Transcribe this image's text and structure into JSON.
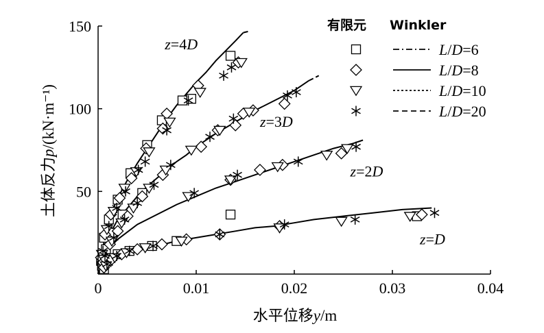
{
  "chart_data": {
    "type": "scatter",
    "xlabel": "水平位移y/m",
    "ylabel": "土体反力p/(kN·m⁻¹)",
    "xlim": [
      0,
      0.04
    ],
    "ylim": [
      0,
      150
    ],
    "x_ticks": [
      "0",
      "0.01",
      "0.02",
      "0.03",
      "0.04"
    ],
    "y_ticks": [
      "50",
      "100",
      "150"
    ],
    "legend": {
      "placement": "top-right",
      "header_fem": "有限元",
      "header_winkler": "Winkler",
      "entries": [
        {
          "label": "L/D=6",
          "marker": "square",
          "line": "dashdot"
        },
        {
          "label": "L/D=8",
          "marker": "diamond",
          "line": "solid"
        },
        {
          "label": "L/D=10",
          "marker": "triangle-down",
          "line": "dotted"
        },
        {
          "label": "L/D=20",
          "marker": "asterisk",
          "line": "dashed"
        }
      ]
    },
    "curves": [
      {
        "depth_label": "z=4D",
        "points": [
          [
            0,
            0
          ],
          [
            0.001,
            32
          ],
          [
            0.002,
            46
          ],
          [
            0.003,
            57
          ],
          [
            0.004,
            67
          ],
          [
            0.005,
            76
          ],
          [
            0.006,
            85
          ],
          [
            0.007,
            94
          ],
          [
            0.008,
            102
          ],
          [
            0.009,
            109
          ],
          [
            0.01,
            116
          ],
          [
            0.011,
            122
          ],
          [
            0.012,
            129
          ],
          [
            0.013,
            135
          ],
          [
            0.014,
            141
          ],
          [
            0.0148,
            146
          ]
        ]
      },
      {
        "depth_label": "z=3D",
        "points": [
          [
            0,
            0
          ],
          [
            0.001,
            22
          ],
          [
            0.002,
            33
          ],
          [
            0.003,
            40
          ],
          [
            0.004,
            47
          ],
          [
            0.005,
            53
          ],
          [
            0.006,
            58
          ],
          [
            0.007,
            63
          ],
          [
            0.008,
            68
          ],
          [
            0.009,
            72
          ],
          [
            0.01,
            77
          ],
          [
            0.012,
            85
          ],
          [
            0.014,
            92
          ],
          [
            0.016,
            99
          ],
          [
            0.018,
            105
          ],
          [
            0.02,
            111
          ],
          [
            0.0215,
            117
          ]
        ]
      },
      {
        "depth_label": "z=2D",
        "points": [
          [
            0,
            0
          ],
          [
            0.001,
            15
          ],
          [
            0.002,
            21
          ],
          [
            0.004,
            30
          ],
          [
            0.006,
            36
          ],
          [
            0.008,
            42
          ],
          [
            0.01,
            47
          ],
          [
            0.012,
            52
          ],
          [
            0.014,
            56
          ],
          [
            0.016,
            60
          ],
          [
            0.018,
            64
          ],
          [
            0.02,
            68
          ],
          [
            0.022,
            72
          ],
          [
            0.024,
            76
          ],
          [
            0.026,
            79
          ],
          [
            0.027,
            81
          ]
        ]
      },
      {
        "depth_label": "z=D",
        "points": [
          [
            0,
            0
          ],
          [
            0.001,
            7
          ],
          [
            0.002,
            10
          ],
          [
            0.004,
            14
          ],
          [
            0.006,
            17
          ],
          [
            0.008,
            20
          ],
          [
            0.01,
            22
          ],
          [
            0.012,
            24
          ],
          [
            0.014,
            26
          ],
          [
            0.016,
            28
          ],
          [
            0.018,
            29
          ],
          [
            0.02,
            31
          ],
          [
            0.022,
            33
          ],
          [
            0.025,
            35
          ],
          [
            0.028,
            37
          ],
          [
            0.031,
            39
          ],
          [
            0.034,
            40
          ]
        ]
      }
    ],
    "fem_points": {
      "square": [
        [
          0.0003,
          8
        ],
        [
          0.0006,
          22
        ],
        [
          0.0011,
          33
        ],
        [
          0.002,
          45
        ],
        [
          0.0033,
          61
        ],
        [
          0.005,
          78
        ],
        [
          0.0065,
          93
        ],
        [
          0.0086,
          105
        ],
        [
          0.0095,
          106
        ],
        [
          0.0135,
          132
        ],
        [
          0.0004,
          5
        ],
        [
          0.0008,
          15
        ],
        [
          0.0015,
          25
        ],
        [
          0.0025,
          36
        ],
        [
          0.0045,
          49
        ],
        [
          0.0006,
          3
        ],
        [
          0.001,
          8
        ],
        [
          0.002,
          12
        ],
        [
          0.0032,
          14
        ],
        [
          0.0055,
          17
        ],
        [
          0.008,
          20
        ],
        [
          0.0135,
          36
        ],
        [
          0.0325,
          35
        ]
      ],
      "diamond": [
        [
          0.0003,
          10
        ],
        [
          0.0007,
          24
        ],
        [
          0.0013,
          36
        ],
        [
          0.0022,
          46
        ],
        [
          0.0034,
          58
        ],
        [
          0.0049,
          76
        ],
        [
          0.0066,
          88
        ],
        [
          0.007,
          97
        ],
        [
          0.0102,
          114
        ],
        [
          0.0143,
          128
        ],
        [
          0.0005,
          7
        ],
        [
          0.0012,
          18
        ],
        [
          0.002,
          26
        ],
        [
          0.003,
          35
        ],
        [
          0.0045,
          47
        ],
        [
          0.0066,
          60
        ],
        [
          0.0105,
          77
        ],
        [
          0.0122,
          87
        ],
        [
          0.014,
          90
        ],
        [
          0.0148,
          97
        ],
        [
          0.0158,
          99
        ],
        [
          0.019,
          103
        ],
        [
          0.0135,
          57
        ],
        [
          0.0165,
          63
        ],
        [
          0.0188,
          66
        ],
        [
          0.0248,
          73
        ],
        [
          0.0006,
          4
        ],
        [
          0.0014,
          9
        ],
        [
          0.0024,
          12
        ],
        [
          0.004,
          15
        ],
        [
          0.0065,
          18
        ],
        [
          0.009,
          21
        ],
        [
          0.0124,
          24
        ],
        [
          0.0185,
          29
        ],
        [
          0.033,
          36
        ]
      ],
      "triangle-down": [
        [
          0.0004,
          12
        ],
        [
          0.0009,
          27
        ],
        [
          0.0016,
          38
        ],
        [
          0.0027,
          52
        ],
        [
          0.0039,
          62
        ],
        [
          0.0052,
          74
        ],
        [
          0.0073,
          92
        ],
        [
          0.0104,
          110
        ],
        [
          0.0146,
          128
        ],
        [
          0.0006,
          9
        ],
        [
          0.0014,
          20
        ],
        [
          0.0024,
          31
        ],
        [
          0.0036,
          40
        ],
        [
          0.0052,
          52
        ],
        [
          0.0069,
          63
        ],
        [
          0.0095,
          75
        ],
        [
          0.0124,
          87
        ],
        [
          0.0154,
          98
        ],
        [
          0.0092,
          47
        ],
        [
          0.0135,
          57
        ],
        [
          0.0183,
          65
        ],
        [
          0.0233,
          72
        ],
        [
          0.0254,
          76
        ],
        [
          0.0008,
          5
        ],
        [
          0.0017,
          10
        ],
        [
          0.0029,
          13
        ],
        [
          0.0048,
          16
        ],
        [
          0.0085,
          20
        ],
        [
          0.0185,
          28
        ],
        [
          0.0248,
          32
        ],
        [
          0.0318,
          35
        ]
      ],
      "asterisk": [
        [
          0.0005,
          14
        ],
        [
          0.0011,
          29
        ],
        [
          0.0019,
          40
        ],
        [
          0.0028,
          50
        ],
        [
          0.0041,
          63
        ],
        [
          0.0048,
          68
        ],
        [
          0.007,
          87
        ],
        [
          0.0092,
          105
        ],
        [
          0.0128,
          120
        ],
        [
          0.0136,
          125
        ],
        [
          0.0007,
          11
        ],
        [
          0.0016,
          22
        ],
        [
          0.0027,
          33
        ],
        [
          0.004,
          43
        ],
        [
          0.0057,
          54
        ],
        [
          0.0074,
          66
        ],
        [
          0.0114,
          83
        ],
        [
          0.0138,
          94
        ],
        [
          0.0193,
          108
        ],
        [
          0.0202,
          110
        ],
        [
          0.0098,
          49
        ],
        [
          0.0142,
          60
        ],
        [
          0.0204,
          68
        ],
        [
          0.0263,
          77
        ],
        [
          0.0009,
          6
        ],
        [
          0.0019,
          11
        ],
        [
          0.0032,
          14
        ],
        [
          0.0056,
          17
        ],
        [
          0.0124,
          24
        ],
        [
          0.019,
          30
        ],
        [
          0.0262,
          33
        ],
        [
          0.0343,
          37
        ]
      ]
    }
  }
}
